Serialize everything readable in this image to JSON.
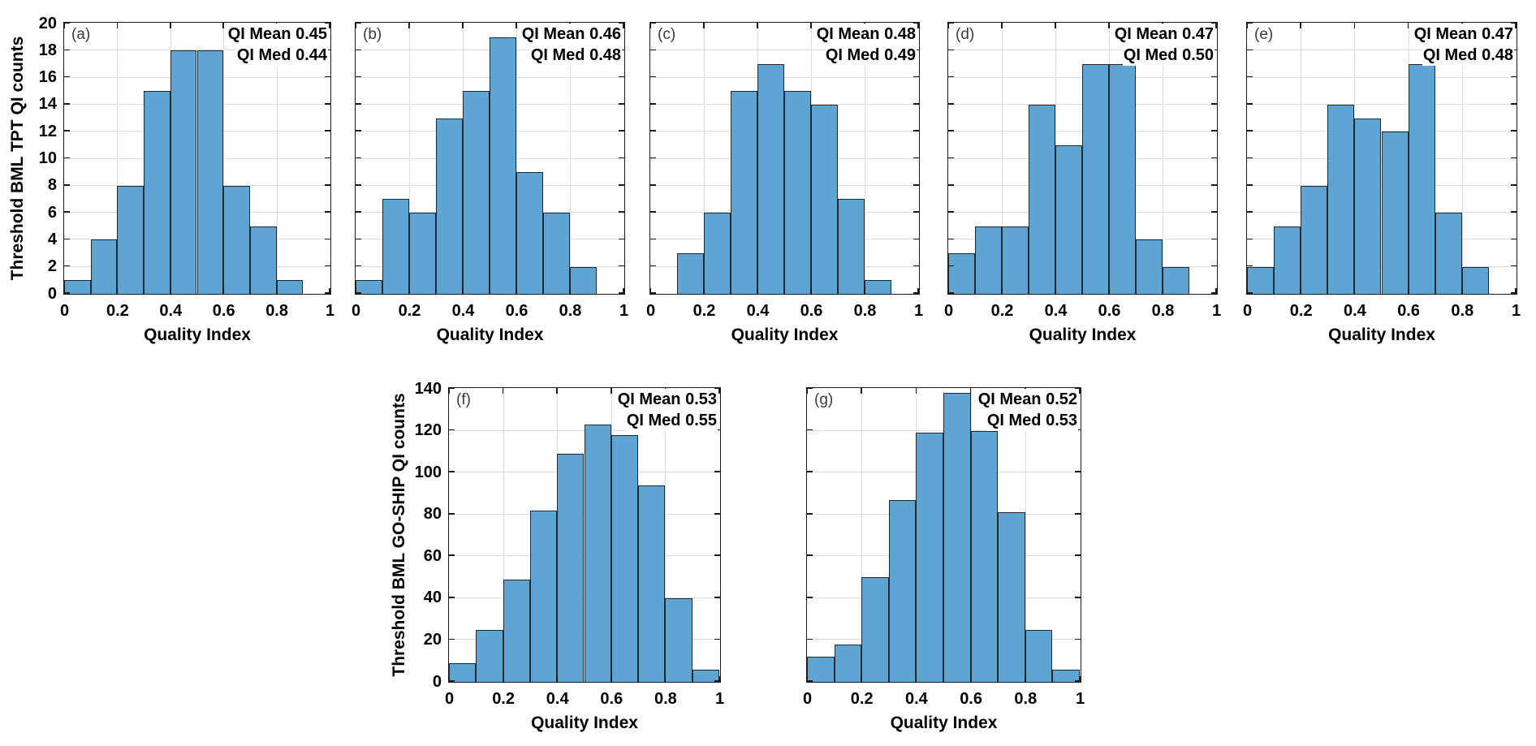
{
  "figure": {
    "background": "#ffffff",
    "bar_fill": "#5fa5d3",
    "bar_edge": "#212a33",
    "grid_color": "#dcdcdc",
    "axis_color": "#1a1a1a",
    "xlabel": "Quality Index",
    "xtick_labels": [
      "0",
      "0.2",
      "0.4",
      "0.6",
      "0.8",
      "1"
    ],
    "xticks": [
      0,
      0.2,
      0.4,
      0.6,
      0.8,
      1
    ],
    "bin_edges": [
      0,
      0.1,
      0.2,
      0.3,
      0.4,
      0.5,
      0.6,
      0.7,
      0.8,
      0.9,
      1.0
    ]
  },
  "rows": [
    {
      "ylabel": "Threshold BML TPT QI counts",
      "ylim": [
        0,
        20
      ],
      "yticks": [
        0,
        2,
        4,
        6,
        8,
        10,
        12,
        14,
        16,
        18,
        20
      ],
      "ytick_labels": [
        "0",
        "2",
        "4",
        "6",
        "8",
        "10",
        "12",
        "14",
        "16",
        "18",
        "20"
      ]
    },
    {
      "ylabel": "Threshold BML GO-SHIP QI counts",
      "ylim": [
        0,
        140
      ],
      "yticks": [
        0,
        20,
        40,
        60,
        80,
        100,
        120,
        140
      ],
      "ytick_labels": [
        "0",
        "20",
        "40",
        "60",
        "80",
        "100",
        "120",
        "140"
      ]
    }
  ],
  "chart_data": [
    {
      "type": "bar",
      "panel": "(a)",
      "row": 0,
      "title": "",
      "xlabel": "Quality Index",
      "ylabel": "Threshold BML TPT QI counts",
      "ylim": [
        0,
        20
      ],
      "bin_edges": [
        0,
        0.1,
        0.2,
        0.3,
        0.4,
        0.5,
        0.6,
        0.7,
        0.8,
        0.9,
        1.0
      ],
      "values": [
        1,
        4,
        8,
        15,
        18,
        18,
        8,
        5,
        1,
        0
      ],
      "qi_mean": 0.45,
      "qi_med": 0.44,
      "annotation_lines": [
        "QI Mean 0.45",
        "QI Med 0.44"
      ],
      "grid": true,
      "legend": "none"
    },
    {
      "type": "bar",
      "panel": "(b)",
      "row": 0,
      "title": "",
      "xlabel": "Quality Index",
      "ylabel": "Threshold BML TPT QI counts",
      "ylim": [
        0,
        20
      ],
      "bin_edges": [
        0,
        0.1,
        0.2,
        0.3,
        0.4,
        0.5,
        0.6,
        0.7,
        0.8,
        0.9,
        1.0
      ],
      "values": [
        1,
        7,
        6,
        13,
        15,
        19,
        9,
        6,
        2,
        0
      ],
      "qi_mean": 0.46,
      "qi_med": 0.48,
      "annotation_lines": [
        "QI Mean 0.46",
        "QI Med 0.48"
      ],
      "grid": true,
      "legend": "none"
    },
    {
      "type": "bar",
      "panel": "(c)",
      "row": 0,
      "title": "",
      "xlabel": "Quality Index",
      "ylabel": "Threshold BML TPT QI counts",
      "ylim": [
        0,
        20
      ],
      "bin_edges": [
        0,
        0.1,
        0.2,
        0.3,
        0.4,
        0.5,
        0.6,
        0.7,
        0.8,
        0.9,
        1.0
      ],
      "values": [
        0,
        3,
        6,
        15,
        17,
        15,
        14,
        7,
        1,
        0
      ],
      "qi_mean": 0.48,
      "qi_med": 0.49,
      "annotation_lines": [
        "QI Mean 0.48",
        "QI Med 0.49"
      ],
      "grid": true,
      "legend": "none"
    },
    {
      "type": "bar",
      "panel": "(d)",
      "row": 0,
      "title": "",
      "xlabel": "Quality Index",
      "ylabel": "Threshold BML TPT QI counts",
      "ylim": [
        0,
        20
      ],
      "bin_edges": [
        0,
        0.1,
        0.2,
        0.3,
        0.4,
        0.5,
        0.6,
        0.7,
        0.8,
        0.9,
        1.0
      ],
      "values": [
        3,
        5,
        5,
        14,
        11,
        17,
        17,
        4,
        2,
        0
      ],
      "qi_mean": 0.47,
      "qi_med": 0.5,
      "annotation_lines": [
        "QI Mean 0.47",
        "QI Med 0.50"
      ],
      "grid": true,
      "legend": "none"
    },
    {
      "type": "bar",
      "panel": "(e)",
      "row": 0,
      "title": "",
      "xlabel": "Quality Index",
      "ylabel": "Threshold BML TPT QI counts",
      "ylim": [
        0,
        20
      ],
      "bin_edges": [
        0,
        0.1,
        0.2,
        0.3,
        0.4,
        0.5,
        0.6,
        0.7,
        0.8,
        0.9,
        1.0
      ],
      "values": [
        2,
        5,
        8,
        14,
        13,
        12,
        17,
        6,
        2,
        0
      ],
      "qi_mean": 0.47,
      "qi_med": 0.48,
      "annotation_lines": [
        "QI Mean 0.47",
        "QI Med 0.48"
      ],
      "grid": true,
      "legend": "none"
    },
    {
      "type": "bar",
      "panel": "(f)",
      "row": 1,
      "title": "",
      "xlabel": "Quality Index",
      "ylabel": "Threshold BML GO-SHIP QI counts",
      "ylim": [
        0,
        140
      ],
      "bin_edges": [
        0,
        0.1,
        0.2,
        0.3,
        0.4,
        0.5,
        0.6,
        0.7,
        0.8,
        0.9,
        1.0
      ],
      "values": [
        9,
        25,
        49,
        82,
        109,
        123,
        118,
        94,
        40,
        6
      ],
      "qi_mean": 0.53,
      "qi_med": 0.55,
      "annotation_lines": [
        "QI Mean 0.53",
        "QI Med 0.55"
      ],
      "grid": true,
      "legend": "none"
    },
    {
      "type": "bar",
      "panel": "(g)",
      "row": 1,
      "title": "",
      "xlabel": "Quality Index",
      "ylabel": "Threshold BML GO-SHIP QI counts",
      "ylim": [
        0,
        140
      ],
      "bin_edges": [
        0,
        0.1,
        0.2,
        0.3,
        0.4,
        0.5,
        0.6,
        0.7,
        0.8,
        0.9,
        1.0
      ],
      "values": [
        12,
        18,
        50,
        87,
        119,
        138,
        120,
        81,
        25,
        6
      ],
      "qi_mean": 0.52,
      "qi_med": 0.53,
      "annotation_lines": [
        "QI Mean 0.52",
        "QI Med 0.53"
      ],
      "grid": true,
      "legend": "none"
    }
  ]
}
